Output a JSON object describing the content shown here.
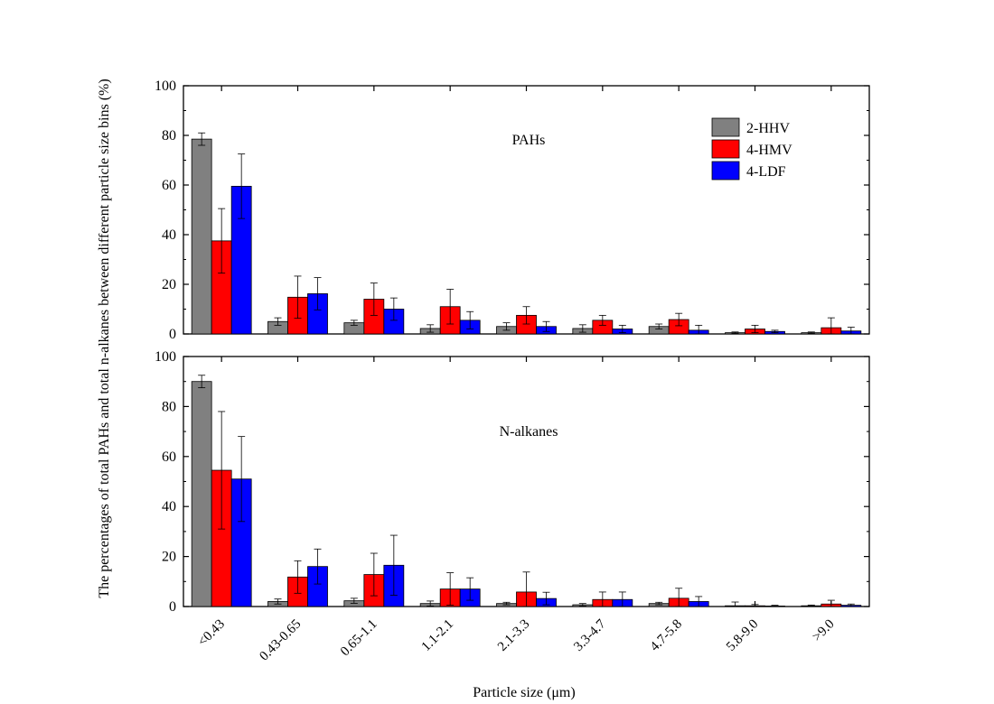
{
  "chart_data": [
    {
      "type": "bar",
      "panel": "top",
      "annotation": "PAHs",
      "categories": [
        "<0.43",
        "0.43-0.65",
        "0.65-1.1",
        "1.1-2.1",
        "2.1-3.3",
        "3.3-4.7",
        "4.7-5.8",
        "5.8-9.0",
        ">9.0"
      ],
      "series": [
        {
          "name": "2-HHV",
          "color": "#808080",
          "values": [
            78.5,
            5.0,
            4.5,
            2.2,
            3.0,
            2.2,
            3.0,
            0.5,
            0.5
          ],
          "errors": [
            2.5,
            1.5,
            1.0,
            1.5,
            1.5,
            1.5,
            1.0,
            0.3,
            0.3
          ]
        },
        {
          "name": "4-HMV",
          "color": "#ff0000",
          "values": [
            37.5,
            14.8,
            14.0,
            11.0,
            7.5,
            5.5,
            5.8,
            2.0,
            2.5
          ],
          "errors": [
            13.0,
            8.5,
            6.5,
            7.0,
            3.5,
            2.0,
            2.5,
            1.5,
            4.0
          ]
        },
        {
          "name": "4-LDF",
          "color": "#0000ff",
          "values": [
            59.5,
            16.2,
            10.0,
            5.5,
            3.0,
            2.0,
            1.5,
            1.0,
            1.2
          ],
          "errors": [
            13.0,
            6.5,
            4.5,
            3.5,
            2.0,
            1.5,
            2.0,
            0.5,
            1.5
          ]
        }
      ],
      "ylim": [
        0,
        100
      ],
      "yticks": [
        0,
        20,
        40,
        60,
        80,
        100
      ],
      "legend_position": "top-right"
    },
    {
      "type": "bar",
      "panel": "bottom",
      "annotation": "N-alkanes",
      "categories": [
        "<0.43",
        "0.43-0.65",
        "0.65-1.1",
        "1.1-2.1",
        "2.1-3.3",
        "3.3-4.7",
        "4.7-5.8",
        "5.8-9.0",
        ">9.0"
      ],
      "series": [
        {
          "name": "2-HHV",
          "color": "#808080",
          "values": [
            90.0,
            2.0,
            2.3,
            1.2,
            1.2,
            0.7,
            1.2,
            0.3,
            0.3
          ],
          "errors": [
            2.5,
            1.0,
            1.0,
            1.0,
            0.5,
            0.5,
            0.5,
            1.5,
            0.3
          ]
        },
        {
          "name": "4-HMV",
          "color": "#ff0000",
          "values": [
            54.5,
            11.8,
            12.8,
            7.0,
            5.8,
            2.8,
            3.3,
            0.3,
            1.0
          ],
          "errors": [
            23.5,
            6.5,
            8.5,
            6.5,
            8.0,
            3.0,
            4.0,
            0.5,
            1.5
          ]
        },
        {
          "name": "4-LDF",
          "color": "#0000ff",
          "values": [
            51.0,
            16.0,
            16.5,
            7.0,
            3.2,
            2.8,
            2.0,
            0.2,
            0.5
          ],
          "errors": [
            17.0,
            7.0,
            12.0,
            4.5,
            2.5,
            3.0,
            2.0,
            0.3,
            0.5
          ]
        }
      ],
      "ylim": [
        0,
        100
      ],
      "yticks": [
        0,
        20,
        40,
        60,
        80,
        100
      ]
    }
  ],
  "axes": {
    "xlabel": "Particle size (μm)",
    "ylabel": "The percentages of total PAHs and  total n-alkanes between different particle size bins (%)"
  }
}
